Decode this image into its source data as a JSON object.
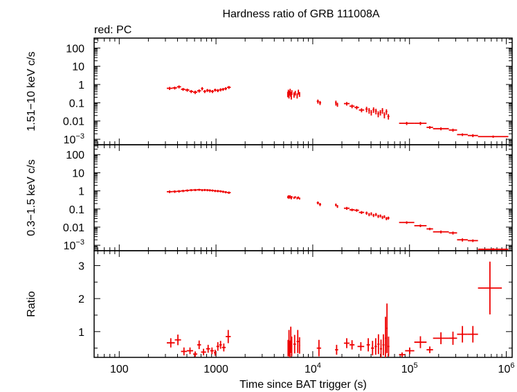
{
  "header": {
    "title": "Hardness ratio of GRB 111008A",
    "mode_label": "red: PC"
  },
  "colors": {
    "data": "#ee0000",
    "axis": "#000000",
    "background": "#ffffff"
  },
  "xaxis": {
    "label": "Time since BAT trigger (s)",
    "scale": "log",
    "range": [
      55,
      1150000
    ],
    "ticks": [
      {
        "value": 100,
        "base": "100",
        "exp": ""
      },
      {
        "value": 1000,
        "base": "1000",
        "exp": ""
      },
      {
        "value": 10000,
        "base": "10",
        "exp": "4"
      },
      {
        "value": 100000,
        "base": "10",
        "exp": "5"
      },
      {
        "value": 1000000,
        "base": "10",
        "exp": "6"
      }
    ]
  },
  "chart_data": [
    {
      "type": "scatter",
      "panel": "hard",
      "ylabel": "1.51−10 keV c/s",
      "yscale": "log",
      "ylim": [
        0.0005,
        350
      ],
      "yticks": [
        {
          "value": 100,
          "base": "100",
          "exp": ""
        },
        {
          "value": 10,
          "base": "10",
          "exp": ""
        },
        {
          "value": 1,
          "base": "1",
          "exp": ""
        },
        {
          "value": 0.1,
          "base": "0.1",
          "exp": ""
        },
        {
          "value": 0.01,
          "base": "0.01",
          "exp": ""
        },
        {
          "value": 0.001,
          "base": "10",
          "exp": "−3"
        }
      ],
      "points": [
        [
          310,
          355,
          0.62,
          0.12
        ],
        [
          355,
          395,
          0.65,
          0.12
        ],
        [
          395,
          435,
          0.75,
          0.14
        ],
        [
          435,
          480,
          0.55,
          0.1
        ],
        [
          480,
          530,
          0.5,
          0.1
        ],
        [
          530,
          580,
          0.42,
          0.08
        ],
        [
          580,
          640,
          0.38,
          0.08
        ],
        [
          640,
          700,
          0.45,
          0.09
        ],
        [
          700,
          740,
          0.6,
          0.12
        ],
        [
          740,
          790,
          0.42,
          0.08
        ],
        [
          790,
          840,
          0.48,
          0.09
        ],
        [
          840,
          890,
          0.45,
          0.09
        ],
        [
          890,
          950,
          0.42,
          0.08
        ],
        [
          950,
          1010,
          0.5,
          0.09
        ],
        [
          1010,
          1080,
          0.47,
          0.09
        ],
        [
          1080,
          1150,
          0.52,
          0.1
        ],
        [
          1150,
          1220,
          0.55,
          0.1
        ],
        [
          1220,
          1300,
          0.6,
          0.11
        ],
        [
          1300,
          1420,
          0.7,
          0.13
        ],
        [
          5480,
          5560,
          0.3,
          0.1
        ],
        [
          5560,
          5640,
          0.4,
          0.12
        ],
        [
          5640,
          5720,
          0.25,
          0.08
        ],
        [
          5720,
          5800,
          0.35,
          0.1
        ],
        [
          5800,
          5880,
          0.45,
          0.13
        ],
        [
          5880,
          5960,
          0.3,
          0.09
        ],
        [
          5960,
          6040,
          0.22,
          0.07
        ],
        [
          6040,
          6120,
          0.38,
          0.11
        ],
        [
          6300,
          6500,
          0.28,
          0.09
        ],
        [
          6500,
          6700,
          0.35,
          0.1
        ],
        [
          6800,
          7000,
          0.25,
          0.08
        ],
        [
          7000,
          7200,
          0.4,
          0.12
        ],
        [
          7200,
          7400,
          0.3,
          0.09
        ],
        [
          11000,
          11600,
          0.12,
          0.03
        ],
        [
          11600,
          12200,
          0.1,
          0.025
        ],
        [
          17000,
          17700,
          0.1,
          0.03
        ],
        [
          17700,
          18300,
          0.08,
          0.02
        ],
        [
          21000,
          24000,
          0.09,
          0.02
        ],
        [
          24000,
          27000,
          0.065,
          0.015
        ],
        [
          27000,
          30000,
          0.055,
          0.012
        ],
        [
          30000,
          34000,
          0.04,
          0.01
        ],
        [
          35000,
          37000,
          0.045,
          0.015
        ],
        [
          37500,
          39000,
          0.038,
          0.013
        ],
        [
          39500,
          41000,
          0.03,
          0.01
        ],
        [
          41500,
          43500,
          0.042,
          0.014
        ],
        [
          44000,
          46000,
          0.035,
          0.012
        ],
        [
          46500,
          48500,
          0.025,
          0.009
        ],
        [
          49000,
          51000,
          0.03,
          0.01
        ],
        [
          51500,
          53500,
          0.038,
          0.013
        ],
        [
          54000,
          56000,
          0.022,
          0.008
        ],
        [
          56500,
          59000,
          0.033,
          0.011
        ],
        [
          59000,
          62000,
          0.018,
          0.006
        ],
        [
          78000,
          112000,
          0.0075,
          0.0015
        ],
        [
          112000,
          150000,
          0.0075,
          0.0015
        ],
        [
          150000,
          175000,
          0.0045,
          0.0008
        ],
        [
          175000,
          255000,
          0.0038,
          0.0007
        ],
        [
          255000,
          310000,
          0.0032,
          0.0006
        ],
        [
          310000,
          400000,
          0.0018,
          0.0003
        ],
        [
          400000,
          510000,
          0.0016,
          0.0003
        ],
        [
          510000,
          1050000,
          0.0014,
          0.0002
        ]
      ]
    },
    {
      "type": "scatter",
      "panel": "soft",
      "ylabel": "0.3−1.5 keV c/s",
      "yscale": "log",
      "ylim": [
        0.0005,
        350
      ],
      "yticks": [
        {
          "value": 100,
          "base": "100",
          "exp": ""
        },
        {
          "value": 10,
          "base": "10",
          "exp": ""
        },
        {
          "value": 1,
          "base": "1",
          "exp": ""
        },
        {
          "value": 0.1,
          "base": "0.1",
          "exp": ""
        },
        {
          "value": 0.01,
          "base": "0.01",
          "exp": ""
        },
        {
          "value": 0.001,
          "base": "10",
          "exp": "−3"
        }
      ],
      "points": [
        [
          310,
          355,
          0.9,
          0.15
        ],
        [
          355,
          395,
          0.92,
          0.15
        ],
        [
          395,
          435,
          0.95,
          0.15
        ],
        [
          435,
          480,
          1.0,
          0.15
        ],
        [
          480,
          530,
          1.05,
          0.15
        ],
        [
          530,
          580,
          1.1,
          0.15
        ],
        [
          580,
          640,
          1.12,
          0.15
        ],
        [
          640,
          700,
          1.15,
          0.15
        ],
        [
          700,
          740,
          1.1,
          0.15
        ],
        [
          740,
          790,
          1.12,
          0.15
        ],
        [
          790,
          840,
          1.1,
          0.15
        ],
        [
          840,
          890,
          1.08,
          0.15
        ],
        [
          890,
          950,
          1.05,
          0.14
        ],
        [
          950,
          1010,
          1.0,
          0.14
        ],
        [
          1010,
          1080,
          0.98,
          0.14
        ],
        [
          1080,
          1150,
          0.95,
          0.13
        ],
        [
          1150,
          1220,
          0.9,
          0.13
        ],
        [
          1220,
          1300,
          0.85,
          0.12
        ],
        [
          1300,
          1420,
          0.8,
          0.12
        ],
        [
          5480,
          5560,
          0.45,
          0.06
        ],
        [
          5560,
          5640,
          0.5,
          0.07
        ],
        [
          5640,
          5720,
          0.42,
          0.06
        ],
        [
          5720,
          5800,
          0.48,
          0.07
        ],
        [
          5800,
          5880,
          0.5,
          0.07
        ],
        [
          5880,
          5960,
          0.44,
          0.06
        ],
        [
          5960,
          6040,
          0.4,
          0.06
        ],
        [
          6040,
          6120,
          0.46,
          0.06
        ],
        [
          6300,
          6500,
          0.42,
          0.06
        ],
        [
          6500,
          6700,
          0.45,
          0.06
        ],
        [
          6800,
          7000,
          0.4,
          0.06
        ],
        [
          7000,
          7200,
          0.43,
          0.06
        ],
        [
          7200,
          7400,
          0.38,
          0.05
        ],
        [
          11000,
          11600,
          0.22,
          0.04
        ],
        [
          11600,
          12200,
          0.18,
          0.035
        ],
        [
          17000,
          17700,
          0.17,
          0.03
        ],
        [
          17700,
          18300,
          0.14,
          0.025
        ],
        [
          21000,
          24000,
          0.11,
          0.02
        ],
        [
          24000,
          27000,
          0.09,
          0.015
        ],
        [
          27000,
          30000,
          0.085,
          0.015
        ],
        [
          30000,
          34000,
          0.065,
          0.012
        ],
        [
          35000,
          37000,
          0.06,
          0.012
        ],
        [
          37500,
          39000,
          0.05,
          0.01
        ],
        [
          39500,
          41000,
          0.055,
          0.011
        ],
        [
          41500,
          43500,
          0.045,
          0.009
        ],
        [
          44000,
          46000,
          0.05,
          0.01
        ],
        [
          46500,
          48500,
          0.04,
          0.008
        ],
        [
          49000,
          51000,
          0.042,
          0.008
        ],
        [
          51500,
          53500,
          0.035,
          0.007
        ],
        [
          54000,
          56000,
          0.038,
          0.007
        ],
        [
          56500,
          59000,
          0.03,
          0.006
        ],
        [
          59000,
          62000,
          0.032,
          0.006
        ],
        [
          78000,
          112000,
          0.018,
          0.003
        ],
        [
          112000,
          150000,
          0.012,
          0.002
        ],
        [
          150000,
          175000,
          0.008,
          0.0012
        ],
        [
          175000,
          255000,
          0.0055,
          0.001
        ],
        [
          255000,
          310000,
          0.0048,
          0.0009
        ],
        [
          310000,
          400000,
          0.002,
          0.0004
        ],
        [
          400000,
          510000,
          0.0018,
          0.0003
        ],
        [
          510000,
          1050000,
          0.0006,
          0.0001
        ]
      ]
    },
    {
      "type": "scatter",
      "panel": "ratio",
      "ylabel": "Ratio",
      "yscale": "linear",
      "ylim": [
        0.22,
        3.45
      ],
      "yticks": [
        {
          "value": 1,
          "base": "1",
          "exp": ""
        },
        {
          "value": 2,
          "base": "2",
          "exp": ""
        },
        {
          "value": 3,
          "base": "3",
          "exp": ""
        }
      ],
      "points": [
        [
          310,
          375,
          0.66,
          0.14
        ],
        [
          375,
          435,
          0.75,
          0.16
        ],
        [
          435,
          500,
          0.4,
          0.12
        ],
        [
          500,
          580,
          0.42,
          0.1
        ],
        [
          580,
          640,
          0.32,
          0.08
        ],
        [
          640,
          700,
          0.6,
          0.13
        ],
        [
          700,
          790,
          0.38,
          0.1
        ],
        [
          790,
          870,
          0.48,
          0.12
        ],
        [
          870,
          950,
          0.42,
          0.1
        ],
        [
          950,
          1010,
          0.36,
          0.09
        ],
        [
          1010,
          1080,
          0.55,
          0.13
        ],
        [
          1080,
          1150,
          0.6,
          0.12
        ],
        [
          1150,
          1260,
          0.52,
          0.12
        ],
        [
          1260,
          1420,
          0.85,
          0.2
        ],
        [
          5500,
          5620,
          0.5,
          0.25
        ],
        [
          5620,
          5740,
          0.65,
          0.4
        ],
        [
          5740,
          5860,
          0.45,
          0.28
        ],
        [
          5860,
          6000,
          0.75,
          0.4
        ],
        [
          6000,
          6120,
          0.55,
          0.3
        ],
        [
          6300,
          6700,
          0.62,
          0.28
        ],
        [
          6800,
          7200,
          0.7,
          0.35
        ],
        [
          7200,
          7400,
          0.58,
          0.25
        ],
        [
          11000,
          12200,
          0.5,
          0.25
        ],
        [
          17000,
          18300,
          0.45,
          0.15
        ],
        [
          21000,
          24000,
          0.65,
          0.15
        ],
        [
          24000,
          27000,
          0.6,
          0.14
        ],
        [
          29000,
          34000,
          0.55,
          0.13
        ],
        [
          36000,
          39000,
          0.6,
          0.2
        ],
        [
          40000,
          43000,
          0.5,
          0.22
        ],
        [
          43500,
          46000,
          0.55,
          0.25
        ],
        [
          46500,
          49000,
          0.62,
          0.3
        ],
        [
          49500,
          52000,
          0.48,
          0.28
        ],
        [
          52500,
          55000,
          0.6,
          0.32
        ],
        [
          55500,
          57500,
          0.8,
          0.65
        ],
        [
          57500,
          59500,
          1.1,
          0.75
        ],
        [
          59500,
          62000,
          0.55,
          0.3
        ],
        [
          78000,
          90000,
          0.3,
          0.07
        ],
        [
          90000,
          112000,
          0.42,
          0.1
        ],
        [
          112000,
          150000,
          0.68,
          0.18
        ],
        [
          150000,
          175000,
          0.45,
          0.1
        ],
        [
          175000,
          255000,
          0.8,
          0.18
        ],
        [
          255000,
          310000,
          0.8,
          0.2
        ],
        [
          310000,
          400000,
          0.92,
          0.25
        ],
        [
          400000,
          510000,
          0.92,
          0.25
        ],
        [
          510000,
          900000,
          2.32,
          0.8
        ]
      ]
    }
  ]
}
